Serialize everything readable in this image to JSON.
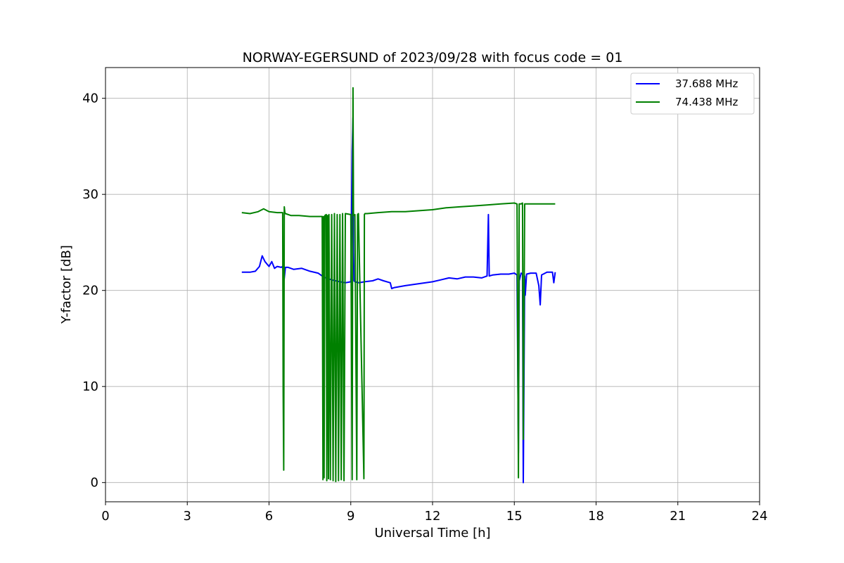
{
  "chart_data": {
    "type": "line",
    "title": "NORWAY-EGERSUND of 2023/09/28 with focus code = 01",
    "xlabel": "Universal Time [h]",
    "ylabel": "Y-factor [dB]",
    "xlim": [
      0,
      24
    ],
    "ylim": [
      -2,
      43.2
    ],
    "xticks": [
      0,
      3,
      6,
      9,
      12,
      15,
      18,
      21,
      24
    ],
    "yticks": [
      0,
      10,
      20,
      30,
      40
    ],
    "grid": true,
    "legend_position": "top-right",
    "series": [
      {
        "name": "37.688 MHz",
        "color": "#0000ff",
        "x": [
          5.0,
          5.3,
          5.5,
          5.65,
          5.75,
          5.85,
          6.0,
          6.1,
          6.2,
          6.3,
          6.45,
          6.5,
          6.55,
          6.6,
          6.7,
          6.9,
          7.2,
          7.5,
          7.8,
          8.0,
          8.3,
          8.6,
          8.8,
          9.0,
          9.05,
          9.08,
          9.1,
          9.12,
          9.15,
          9.3,
          9.5,
          9.8,
          10.0,
          10.2,
          10.45,
          10.5,
          10.6,
          11.0,
          11.5,
          12.0,
          12.3,
          12.6,
          12.9,
          13.2,
          13.5,
          13.8,
          14.0,
          14.05,
          14.08,
          14.2,
          14.5,
          14.8,
          15.0,
          15.1,
          15.15,
          15.18,
          15.25,
          15.3,
          15.33,
          15.38,
          15.4,
          15.45,
          15.6,
          15.8,
          15.9,
          15.95,
          16.0,
          16.2,
          16.4,
          16.45,
          16.5
        ],
        "y": [
          21.9,
          21.9,
          22.0,
          22.5,
          23.6,
          23.0,
          22.5,
          23.0,
          22.3,
          22.5,
          22.4,
          22.5,
          21.0,
          22.4,
          22.4,
          22.2,
          22.3,
          22.0,
          21.8,
          21.4,
          21.1,
          20.9,
          20.8,
          20.9,
          34.5,
          38.0,
          24.0,
          21.0,
          20.9,
          20.8,
          20.9,
          21.0,
          21.2,
          21.0,
          20.8,
          20.2,
          20.3,
          20.5,
          20.7,
          20.9,
          21.1,
          21.3,
          21.2,
          21.4,
          21.4,
          21.3,
          21.5,
          27.9,
          21.5,
          21.6,
          21.7,
          21.7,
          21.8,
          21.6,
          3.1,
          21.0,
          21.8,
          21.7,
          0.0,
          21.5,
          19.5,
          21.7,
          21.8,
          21.8,
          20.5,
          18.5,
          21.6,
          21.9,
          21.9,
          20.8,
          21.9
        ]
      },
      {
        "name": "74.438 MHz",
        "color": "#008000",
        "x": [
          5.0,
          5.3,
          5.6,
          5.8,
          6.0,
          6.3,
          6.5,
          6.52,
          6.54,
          6.56,
          6.58,
          6.6,
          6.8,
          7.1,
          7.5,
          7.95,
          7.98,
          8.0,
          8.02,
          8.05,
          8.1,
          8.12,
          8.15,
          8.18,
          8.2,
          8.25,
          8.3,
          8.35,
          8.4,
          8.45,
          8.5,
          8.55,
          8.6,
          8.65,
          8.7,
          8.75,
          8.8,
          9.0,
          9.05,
          9.08,
          9.1,
          9.12,
          9.15,
          9.22,
          9.25,
          9.28,
          9.48,
          9.5,
          9.52,
          9.6,
          10.0,
          10.5,
          11.0,
          11.5,
          12.0,
          12.5,
          13.0,
          13.5,
          14.0,
          14.5,
          15.0,
          15.1,
          15.15,
          15.18,
          15.25,
          15.3,
          15.33,
          15.38,
          15.5,
          16.0,
          16.5
        ],
        "y": [
          28.1,
          28.0,
          28.2,
          28.5,
          28.2,
          28.1,
          28.1,
          9.5,
          1.3,
          28.7,
          28.1,
          28.0,
          27.8,
          27.8,
          27.7,
          27.7,
          0.3,
          27.7,
          0.5,
          27.8,
          27.9,
          0.2,
          27.8,
          0.4,
          27.9,
          0.3,
          27.9,
          0.2,
          28.0,
          0.1,
          27.9,
          0.2,
          27.9,
          0.3,
          28.0,
          0.2,
          28.0,
          27.9,
          0.3,
          41.1,
          27.9,
          27.8,
          27.9,
          0.3,
          27.9,
          28.0,
          0.4,
          27.9,
          28.0,
          28.0,
          28.1,
          28.2,
          28.2,
          28.3,
          28.4,
          28.6,
          28.7,
          28.8,
          28.9,
          29.0,
          29.1,
          29.0,
          0.5,
          29.0,
          29.0,
          29.1,
          4.5,
          29.0,
          29.0,
          29.0,
          29.0
        ]
      }
    ]
  }
}
